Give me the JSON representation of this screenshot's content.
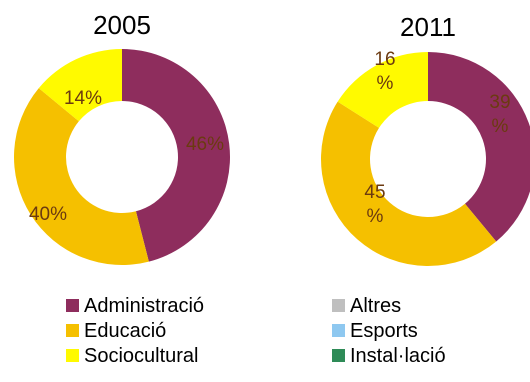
{
  "chart_data": [
    {
      "type": "pie",
      "title": "2005",
      "slices": [
        {
          "name": "Administració",
          "value": 46,
          "label": [
            "46%"
          ],
          "color": "#8e2d5d"
        },
        {
          "name": "Educació",
          "value": 40,
          "label": [
            "40%"
          ],
          "color": "#f5c000"
        },
        {
          "name": "Sociocultural",
          "value": 14,
          "label": [
            "14%"
          ],
          "color": "#fffa00"
        }
      ]
    },
    {
      "type": "pie",
      "title": "2011",
      "slices": [
        {
          "name": "Administració",
          "value": 39,
          "label": [
            "39",
            "%"
          ],
          "color": "#8e2d5d"
        },
        {
          "name": "Educació",
          "value": 45,
          "label": [
            "45",
            "%"
          ],
          "color": "#f5c000"
        },
        {
          "name": "Sociocultural",
          "value": 16,
          "label": [
            "16",
            "%"
          ],
          "color": "#fffa00"
        }
      ]
    }
  ],
  "legend": [
    {
      "name": "Administració",
      "color": "#8e2d5d"
    },
    {
      "name": "Educació",
      "color": "#f5c000"
    },
    {
      "name": "Sociocultural",
      "color": "#fffa00"
    },
    {
      "name": "Altres",
      "color": "#bfbfbf"
    },
    {
      "name": "Esports",
      "color": "#8ec8f0"
    },
    {
      "name": "Instal·lació",
      "color": "#2e8b57"
    }
  ],
  "label_color": "#6b3a10"
}
